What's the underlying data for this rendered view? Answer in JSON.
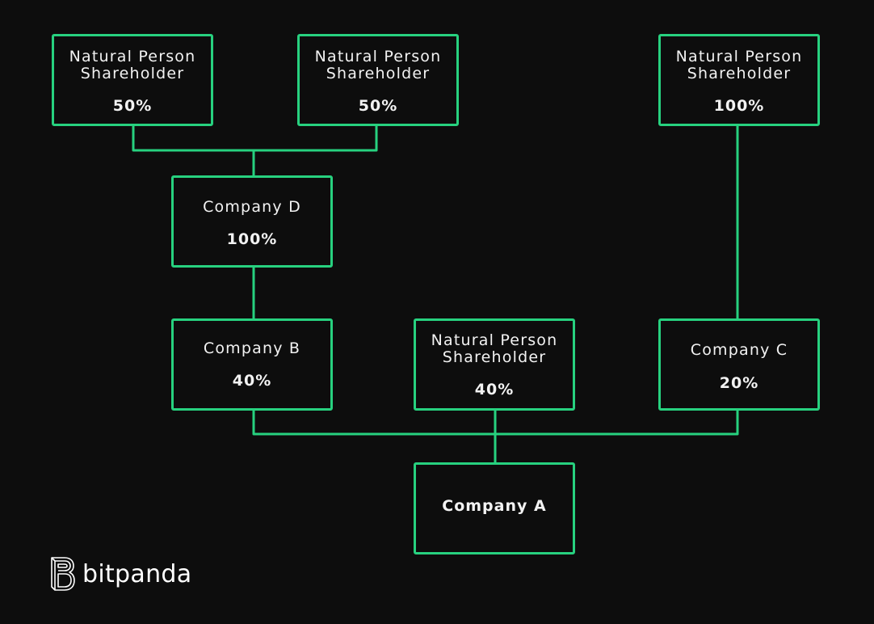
{
  "colors": {
    "accent": "#27d17f",
    "background": "#0d0d0d",
    "text": "#f2f2f2"
  },
  "nodes": {
    "np1": {
      "line1": "Natural Person",
      "line2": "Shareholder",
      "pct": "50%"
    },
    "np2": {
      "line1": "Natural Person",
      "line2": "Shareholder",
      "pct": "50%"
    },
    "np3": {
      "line1": "Natural Person",
      "line2": "Shareholder",
      "pct": "100%"
    },
    "d": {
      "label": "Company D",
      "pct": "100%"
    },
    "b": {
      "label": "Company B",
      "pct": "40%"
    },
    "np4": {
      "line1": "Natural Person",
      "line2": "Shareholder",
      "pct": "40%"
    },
    "c": {
      "label": "Company C",
      "pct": "20%"
    },
    "a": {
      "label": "Company A"
    }
  },
  "edges": [
    [
      "np1",
      "d"
    ],
    [
      "np2",
      "d"
    ],
    [
      "d",
      "b"
    ],
    [
      "np3",
      "c"
    ],
    [
      "b",
      "a"
    ],
    [
      "np4",
      "a"
    ],
    [
      "c",
      "a"
    ]
  ],
  "logo": {
    "icon": "bitpanda-b-icon",
    "text": "bitpanda"
  }
}
